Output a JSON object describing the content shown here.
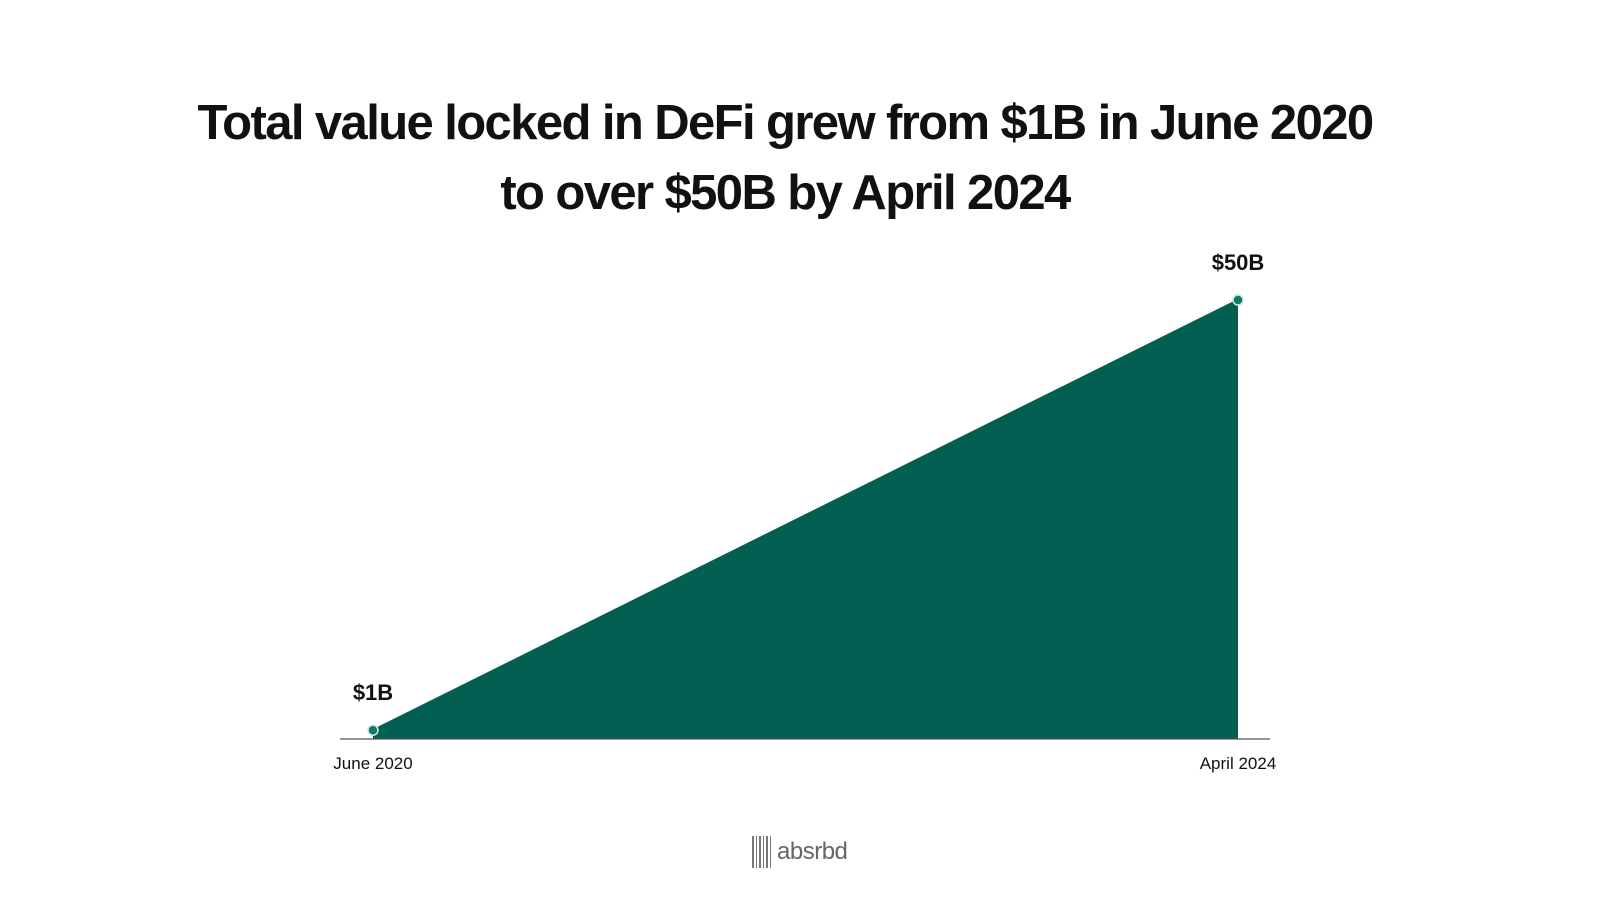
{
  "chart_data": {
    "type": "area",
    "title_lines": [
      "Total value locked in DeFi grew from $1B in June 2020",
      "to over $50B by April 2024"
    ],
    "x": [
      "June 2020",
      "April 2024"
    ],
    "values": [
      1,
      50
    ],
    "value_labels": [
      "$1B",
      "$50B"
    ],
    "xlabel": "",
    "ylabel": "",
    "ylim": [
      0,
      50
    ],
    "grid": false,
    "legend": "none",
    "fill_color": "#035f52",
    "point_color": "#0d7a6b",
    "axis_color": "#555555"
  },
  "brand": {
    "name": "absrbd",
    "icon": "barcode-bars-icon",
    "color": "#666666"
  }
}
